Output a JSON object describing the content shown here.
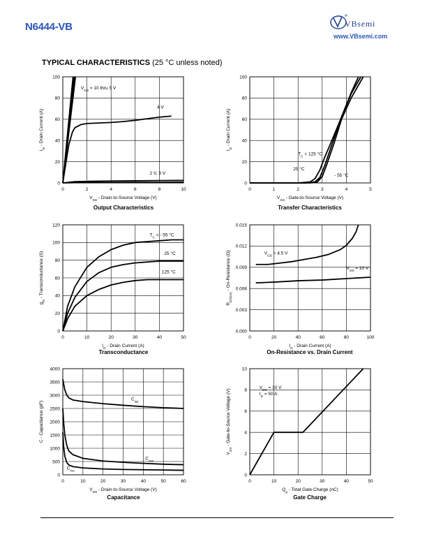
{
  "header": {
    "part_number": "N6444-VB",
    "brand": "VBsemi",
    "website": "www.VBsemi.com"
  },
  "section": {
    "title": "TYPICAL CHARACTERISTICS",
    "subtitle": "(25 °C unless noted)"
  },
  "chart_data": [
    {
      "id": "output",
      "type": "line",
      "title": "Output Characteristics",
      "xlabel": "V_DS - Drain-to-Source Voltage (V)",
      "ylabel": "I_D - Drain Current (A)",
      "xlim": [
        0,
        10
      ],
      "ylim": [
        0,
        100
      ],
      "xticks": [
        0,
        2,
        4,
        6,
        8,
        10
      ],
      "yticks": [
        0,
        20,
        40,
        60,
        80,
        100
      ],
      "grid": true,
      "series": [
        {
          "name": "V_GS = 10 thru 5 V",
          "x": [
            0,
            0.85
          ],
          "y": [
            0,
            100
          ]
        },
        {
          "name": "V_GS = 10 thru 5 V",
          "x": [
            0,
            0.95
          ],
          "y": [
            0,
            100
          ]
        },
        {
          "name": "V_GS = 10 thru 5 V",
          "x": [
            0,
            1.05
          ],
          "y": [
            0,
            100
          ]
        },
        {
          "name": "4 V",
          "x": [
            0,
            0.3,
            0.5,
            0.8,
            1.0,
            1.5,
            2,
            3,
            4,
            5,
            6,
            7,
            8,
            9
          ],
          "y": [
            0,
            22,
            36,
            48,
            52,
            55,
            56,
            56.5,
            57,
            57.8,
            59,
            60.5,
            62,
            63
          ]
        },
        {
          "name": "2 V, 3 V",
          "x": [
            0,
            1,
            2,
            4,
            6,
            8,
            10
          ],
          "y": [
            0,
            1.2,
            1.5,
            1.8,
            2.0,
            2.2,
            2.4
          ]
        },
        {
          "name": "2 V, 3 V",
          "x": [
            0,
            1,
            2,
            4,
            6,
            8,
            10
          ],
          "y": [
            0,
            0.3,
            0.4,
            0.5,
            0.6,
            0.6,
            0.7
          ]
        }
      ],
      "annotations": [
        {
          "text": "V_GS = 10 thru 5 V",
          "x": 1.5,
          "y": 88
        },
        {
          "text": "4 V",
          "x": 7.8,
          "y": 70
        },
        {
          "text": "2 V, 3 V",
          "x": 7.2,
          "y": 8
        }
      ]
    },
    {
      "id": "transfer",
      "type": "line",
      "title": "Transfer Characteristics",
      "xlabel": "V_GS - Gate-to-Source Voltage (V)",
      "ylabel": "I_D - Drain Current (A)",
      "xlim": [
        0,
        5
      ],
      "ylim": [
        0,
        100
      ],
      "xticks": [
        0,
        1,
        2,
        3,
        4,
        5
      ],
      "yticks": [
        0,
        20,
        40,
        60,
        80,
        100
      ],
      "grid": true,
      "series": [
        {
          "name": "T_C = 125 °C",
          "x": [
            0,
            2,
            2.5,
            2.7,
            2.9,
            3.1,
            3.4,
            3.8,
            4.2,
            4.5
          ],
          "y": [
            0,
            0,
            1,
            4,
            12,
            24,
            40,
            62,
            85,
            100
          ]
        },
        {
          "name": "25 °C",
          "x": [
            0,
            2.3,
            2.7,
            2.9,
            3.1,
            3.4,
            3.8,
            4.2,
            4.6
          ],
          "y": [
            0,
            0,
            1,
            5,
            16,
            36,
            62,
            84,
            100
          ]
        },
        {
          "name": "- 55 °C",
          "x": [
            0,
            2.5,
            2.8,
            3.0,
            3.2,
            3.5,
            3.8,
            4.2,
            4.7
          ],
          "y": [
            0,
            0,
            1,
            6,
            18,
            38,
            60,
            80,
            100
          ]
        }
      ],
      "annotations": [
        {
          "text": "T_C = 125 °C",
          "x": 2.0,
          "y": 26
        },
        {
          "text": "25 °C",
          "x": 1.8,
          "y": 12
        },
        {
          "text": "- 55 °C",
          "x": 3.5,
          "y": 6
        }
      ]
    },
    {
      "id": "transconductance",
      "type": "line",
      "title": "Transconductance",
      "xlabel": "I_D - Drain Current (A)",
      "ylabel": "g_fs - Transconductance (S)",
      "xlim": [
        0,
        50
      ],
      "ylim": [
        0,
        120
      ],
      "xticks": [
        0,
        10,
        20,
        30,
        40,
        50
      ],
      "yticks": [
        0,
        20,
        40,
        60,
        80,
        100,
        120
      ],
      "grid": true,
      "series": [
        {
          "name": "T_C = - 55 °C",
          "x": [
            0,
            2,
            5,
            10,
            15,
            20,
            25,
            30,
            35,
            40,
            45,
            50
          ],
          "y": [
            0,
            28,
            50,
            72,
            84,
            92,
            97,
            100,
            101,
            102,
            103,
            103
          ]
        },
        {
          "name": "25 °C",
          "x": [
            0,
            2,
            5,
            10,
            15,
            20,
            25,
            30,
            35,
            40,
            45,
            50
          ],
          "y": [
            0,
            20,
            38,
            56,
            66,
            72,
            75,
            77,
            78,
            79,
            79,
            79
          ]
        },
        {
          "name": "125 °C",
          "x": [
            0,
            2,
            5,
            10,
            15,
            20,
            25,
            30,
            35,
            40,
            45,
            50
          ],
          "y": [
            0,
            14,
            28,
            40,
            47,
            52,
            55,
            57,
            58,
            58,
            58,
            58
          ]
        }
      ],
      "annotations": [
        {
          "text": "T_C = - 55 °C",
          "x": 36,
          "y": 107
        },
        {
          "text": "25 °C",
          "x": 42,
          "y": 86
        },
        {
          "text": "125 °C",
          "x": 41,
          "y": 65
        }
      ]
    },
    {
      "id": "on_resistance",
      "type": "line",
      "title": "On-Resistance vs. Drain Current",
      "xlabel": "I_D - Drain Current (A)",
      "ylabel": "R_DS(on) - On-Resistance (Ω)",
      "xlim": [
        0,
        100
      ],
      "ylim": [
        0,
        0.015
      ],
      "xticks": [
        0,
        20,
        40,
        60,
        80,
        100
      ],
      "yticks": [
        0.0,
        0.003,
        0.006,
        0.009,
        0.012,
        0.015
      ],
      "grid": true,
      "series": [
        {
          "name": "V_GS = 4.5 V",
          "x": [
            5,
            15,
            25,
            35,
            45,
            55,
            65,
            75,
            80,
            85,
            88,
            90
          ],
          "y": [
            0.0094,
            0.0094,
            0.0096,
            0.0098,
            0.0101,
            0.0104,
            0.0108,
            0.0115,
            0.0121,
            0.0131,
            0.014,
            0.015
          ]
        },
        {
          "name": "V_GS = 10 V",
          "x": [
            5,
            20,
            40,
            60,
            80,
            100
          ],
          "y": [
            0.0068,
            0.0069,
            0.0071,
            0.0072,
            0.0074,
            0.0076
          ]
        }
      ],
      "annotations": [
        {
          "text": "V_GS = 4.5 V",
          "x": 12,
          "y": 0.0108
        },
        {
          "text": "V_GS = 10 V",
          "x": 80,
          "y": 0.0087
        }
      ]
    },
    {
      "id": "capacitance",
      "type": "line",
      "title": "Capacitance",
      "xlabel": "V_DS - Drain-to-Source Voltage (V)",
      "ylabel": "C - Capacitance (pF)",
      "xlim": [
        0,
        60
      ],
      "ylim": [
        0,
        4000
      ],
      "xticks": [
        0,
        10,
        20,
        30,
        40,
        50,
        60
      ],
      "yticks": [
        0,
        500,
        1000,
        1500,
        2000,
        2500,
        3000,
        3500,
        4000
      ],
      "grid": true,
      "series": [
        {
          "name": "C_iss",
          "x": [
            0,
            0.5,
            1,
            2,
            3,
            5,
            10,
            20,
            30,
            40,
            50,
            60
          ],
          "y": [
            3600,
            3400,
            3200,
            3000,
            2900,
            2820,
            2760,
            2680,
            2620,
            2570,
            2530,
            2500
          ]
        },
        {
          "name": "C_oss",
          "x": [
            0,
            0.5,
            1,
            2,
            3,
            5,
            10,
            20,
            30,
            40,
            50,
            60
          ],
          "y": [
            2500,
            1900,
            1500,
            1100,
            900,
            760,
            620,
            520,
            470,
            430,
            400,
            380
          ]
        },
        {
          "name": "C_rss",
          "x": [
            0,
            0.5,
            1,
            2,
            3,
            5,
            10,
            20,
            30,
            40,
            50,
            60
          ],
          "y": [
            1600,
            1000,
            700,
            460,
            370,
            310,
            260,
            220,
            200,
            190,
            180,
            170
          ]
        }
      ],
      "annotations": [
        {
          "text": "C_iss",
          "x": 34,
          "y": 2800
        },
        {
          "text": "C_oss",
          "x": 41,
          "y": 560
        },
        {
          "text": "C_rss",
          "x": 2,
          "y": 200
        }
      ]
    },
    {
      "id": "gate_charge",
      "type": "line",
      "title": "Gate Charge",
      "xlabel": "Q_g - Total Gate Charge (nC)",
      "ylabel": "V_GS - Gate-to-Source Voltage (V)",
      "xlim": [
        0,
        50
      ],
      "ylim": [
        0,
        10
      ],
      "xticks": [
        0,
        10,
        20,
        30,
        40,
        50
      ],
      "yticks": [
        0,
        2,
        4,
        6,
        8,
        10
      ],
      "grid": true,
      "series": [
        {
          "name": "V_GS",
          "x": [
            0,
            10,
            22,
            47
          ],
          "y": [
            0,
            4,
            4,
            10
          ]
        }
      ],
      "annotations": [
        {
          "text": "V_DS = 30 V",
          "x": 4,
          "y": 8.1
        },
        {
          "text": "I_D = 50 A",
          "x": 4,
          "y": 7.5
        }
      ]
    }
  ]
}
